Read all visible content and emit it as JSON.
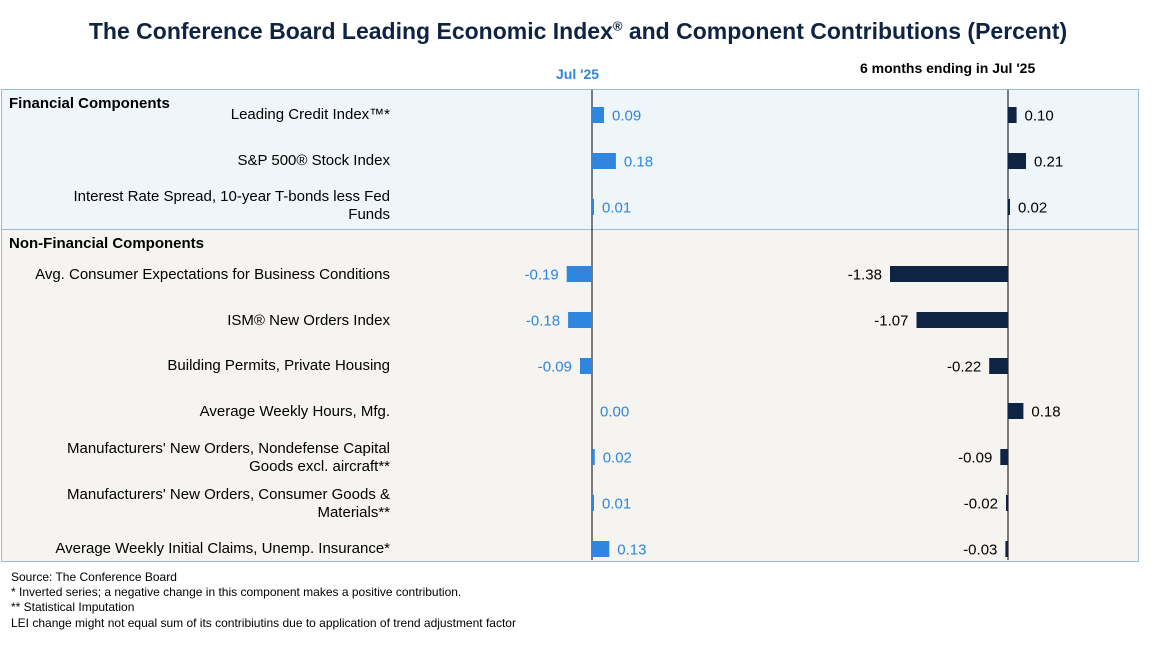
{
  "title": "The Conference Board Leading Economic Index",
  "title_mark": "®",
  "title_suffix": " and Component Contributions (Percent)",
  "columns": {
    "monthly": "Jul  '25",
    "six_month": "6 months ending in Jul  '25"
  },
  "sections": [
    {
      "label": "Financial Components"
    },
    {
      "label": "Non-Financial Components"
    }
  ],
  "colors": {
    "monthly": "#2e86de",
    "six_month": "#0f2442"
  },
  "chart_data": {
    "type": "bar",
    "orientation": "horizontal",
    "categories": [
      "Leading Credit Index™*",
      "S&P 500® Stock Index",
      "Interest Rate Spread, 10-year T-bonds less Fed Funds",
      "Avg. Consumer Expectations for Business Conditions",
      "ISM® New Orders Index",
      "Building Permits, Private Housing",
      "Average Weekly Hours, Mfg.",
      "Manufacturers' New Orders, Nondefense Capital Goods excl. aircraft**",
      "Manufacturers' New Orders, Consumer Goods & Materials**",
      "Average Weekly Initial Claims, Unemp. Insurance*"
    ],
    "series": [
      {
        "name": "Jul  '25",
        "values": [
          0.09,
          0.18,
          0.01,
          -0.19,
          -0.18,
          -0.09,
          0.0,
          0.02,
          0.01,
          0.13
        ],
        "labels": [
          "0.09",
          "0.18",
          "0.01",
          "-0.19",
          "-0.18",
          "-0.09",
          "0.00",
          "0.02",
          "0.01",
          "0.13"
        ]
      },
      {
        "name": "6 months ending in Jul  '25",
        "values": [
          0.1,
          0.21,
          0.02,
          -1.38,
          -1.07,
          -0.22,
          0.18,
          -0.09,
          -0.02,
          -0.03
        ],
        "labels": [
          "0.10",
          "0.21",
          "0.02",
          "-1.38",
          "-1.07",
          "-0.22",
          "0.18",
          "-0.09",
          "-0.02",
          "-0.03"
        ]
      }
    ]
  },
  "footnotes": [
    "Source: The Conference Board",
    "*  Inverted series; a negative change in this component makes a positive contribution.",
    "**  Statistical Imputation",
    "LEI change might not equal sum of its contribiutins due to application of trend adjustment factor"
  ]
}
